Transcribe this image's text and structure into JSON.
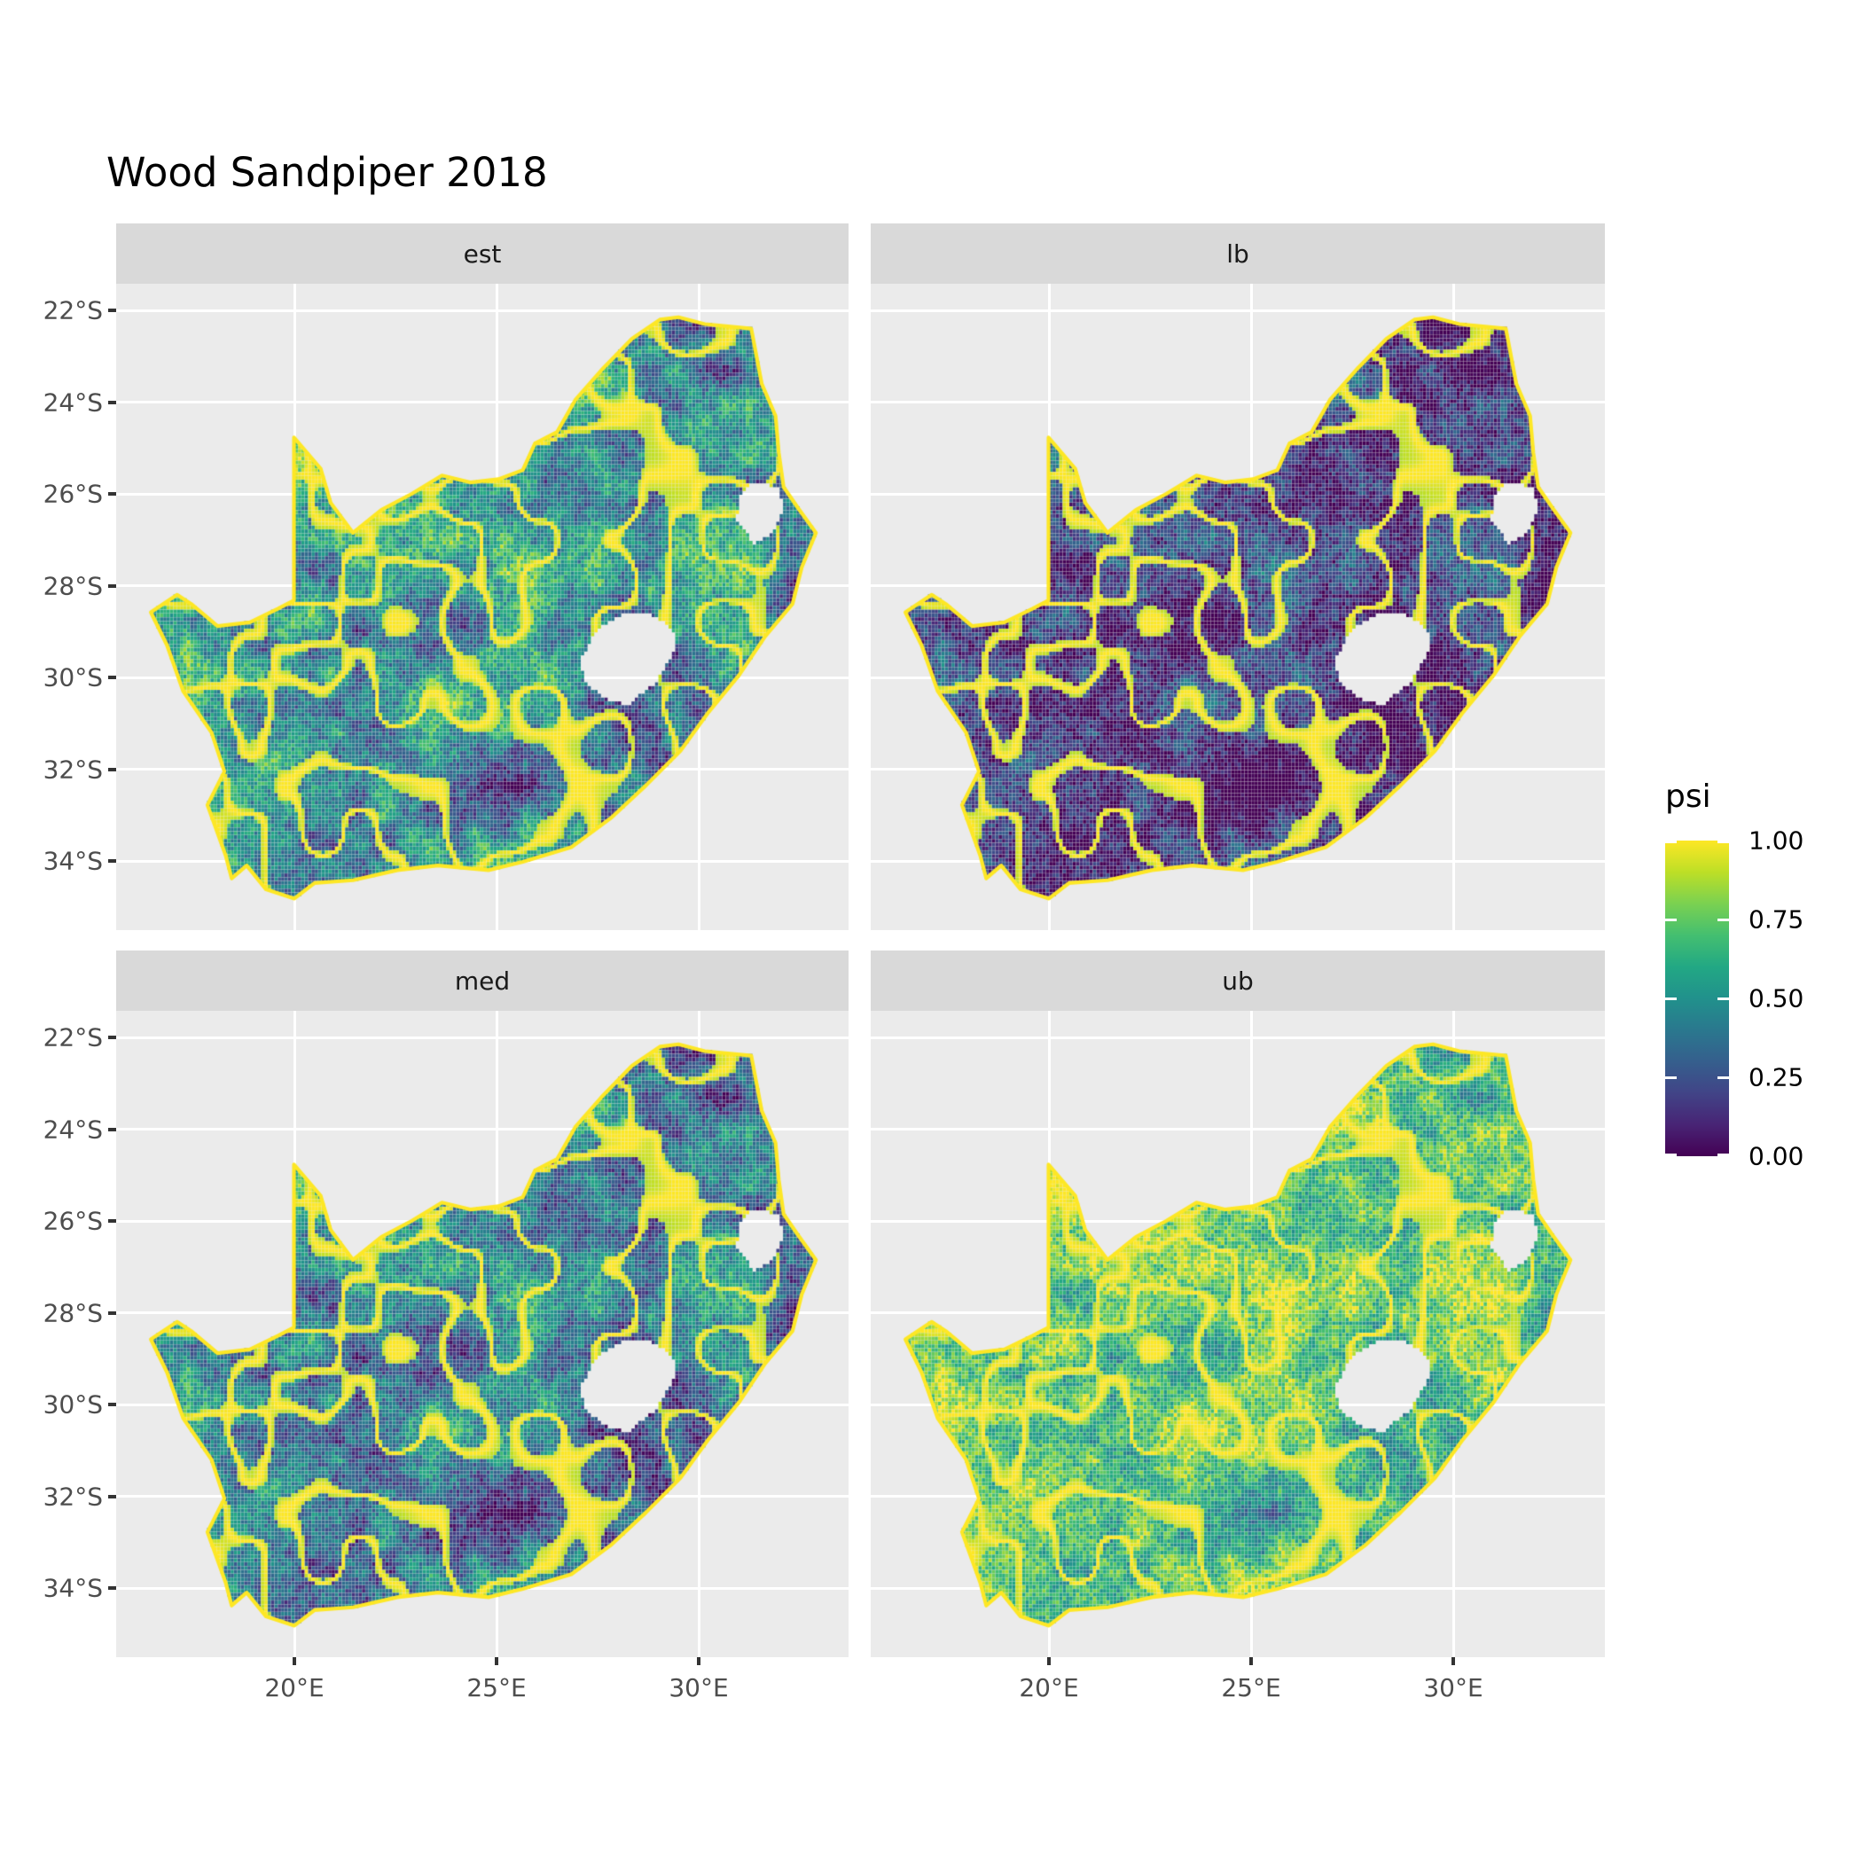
{
  "title": "Wood Sandpiper 2018",
  "facets": [
    {
      "label": "est"
    },
    {
      "label": "lb"
    },
    {
      "label": "med"
    },
    {
      "label": "ub"
    }
  ],
  "axes": {
    "x_ticks": [
      "20°E",
      "25°E",
      "30°E"
    ],
    "y_ticks": [
      "22°S",
      "24°S",
      "26°S",
      "28°S",
      "30°S",
      "32°S",
      "34°S"
    ]
  },
  "legend": {
    "title": "psi",
    "ticks": [
      "1.00",
      "0.75",
      "0.50",
      "0.25",
      "0.00"
    ]
  },
  "colors": {
    "background": "#ffffff",
    "panel_bg": "#ebebeb",
    "strip_bg": "#d9d9d9",
    "gridline": "#ffffff",
    "axis_text": "#4d4d4d",
    "strip_text": "#1a1a1a",
    "title_text": "#000000",
    "tick_mark": "#333333",
    "map_outline": "#fde725",
    "viridis": [
      "#440154",
      "#482475",
      "#414487",
      "#355f8d",
      "#2a788e",
      "#21918c",
      "#22a884",
      "#44bf70",
      "#7ad151",
      "#bddf26",
      "#fde725"
    ]
  },
  "chart_data": {
    "type": "heatmap",
    "subtype": "faceted raster occupancy maps (pentad grid) of South Africa",
    "title": "Wood Sandpiper 2018",
    "facets": [
      "est",
      "lb",
      "med",
      "ub"
    ],
    "variable": "psi",
    "value_range": [
      0,
      1
    ],
    "palette": "viridis",
    "x_axis": {
      "label": "",
      "ticks": [
        "20°E",
        "25°E",
        "30°E"
      ],
      "approx_range_deg_E": [
        15.6,
        33.7
      ]
    },
    "y_axis": {
      "label": "",
      "ticks": [
        "22°S",
        "24°S",
        "26°S",
        "28°S",
        "30°S",
        "32°S",
        "34°S"
      ],
      "approx_range_deg_S": [
        21.4,
        35.5
      ]
    },
    "legend": {
      "title": "psi",
      "ticks": [
        1.0,
        0.75,
        0.5,
        0.25,
        0.0
      ],
      "position": "right"
    },
    "facet_observations": [
      {
        "facet": "est",
        "approx_mean_psi": 0.5,
        "description": "mixed teal/green with yellow drainage-line ridges; dark purple patches in the east escarpment and southern interior"
      },
      {
        "facet": "lb",
        "approx_mean_psi": 0.3,
        "description": "lower bound: predominantly dark purple/blue with yellow coastline and river lines"
      },
      {
        "facet": "med",
        "approx_mean_psi": 0.45,
        "description": "median: similar pattern to est, slightly darker overall"
      },
      {
        "facet": "ub",
        "approx_mean_psi": 0.7,
        "description": "upper bound: predominantly green/yellow with scattered dark cells"
      }
    ],
    "map_features": {
      "country": "South Africa",
      "excluded_holes": [
        "Lesotho",
        "Eswatini"
      ],
      "outline_color": "#fde725",
      "grid_cell_size_deg": 0.0833
    }
  }
}
